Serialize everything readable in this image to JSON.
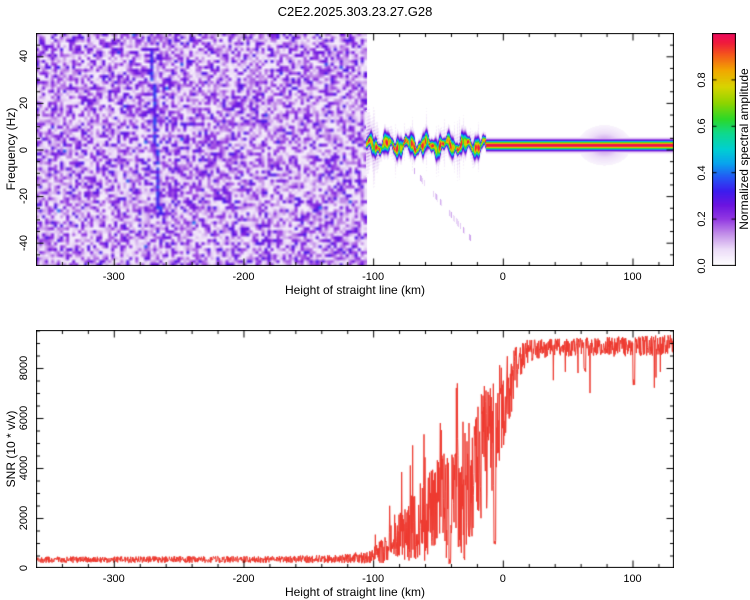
{
  "page": {
    "title": "C2E2.2025.303.23.27.G28",
    "background": "#ffffff",
    "frame_color": "#000000"
  },
  "chart_data": [
    {
      "id": "spectrogram",
      "type": "heatmap",
      "title": "C2E2.2025.303.23.27.G28",
      "xlabel": "Height of straight line (km)",
      "ylabel": "Frequency (Hz)",
      "xlim": [
        -360,
        132
      ],
      "ylim": [
        -50,
        50
      ],
      "xticks": [
        -300,
        -200,
        -100,
        0,
        100
      ],
      "xtick_labels": [
        "-300",
        "-200",
        "-100",
        "0",
        "100"
      ],
      "x_minor_step": 20,
      "yticks": [
        40,
        20,
        0,
        -20,
        -40
      ],
      "ytick_labels": [
        "40",
        "20",
        "0",
        "-20",
        "-40"
      ],
      "y_minor_step": 5,
      "grid": false,
      "colorbar": {
        "label": "Normalized spectral amplitude",
        "tick_values": [
          0.0,
          0.2,
          0.4,
          0.6,
          0.8
        ],
        "tick_labels": [
          "0.0",
          "0.2",
          "0.4",
          "0.6",
          "0.8"
        ],
        "range": [
          0,
          1
        ]
      },
      "colormap_stops": [
        [
          0.0,
          "#ffffff"
        ],
        [
          0.07,
          "#ecdcf8"
        ],
        [
          0.14,
          "#c08ae8"
        ],
        [
          0.2,
          "#9238e2"
        ],
        [
          0.26,
          "#6b14e0"
        ],
        [
          0.32,
          "#3c1cee"
        ],
        [
          0.38,
          "#2457f4"
        ],
        [
          0.44,
          "#09a4ee"
        ],
        [
          0.5,
          "#00cfd2"
        ],
        [
          0.57,
          "#0fd98c"
        ],
        [
          0.63,
          "#2cd829"
        ],
        [
          0.7,
          "#8ed400"
        ],
        [
          0.77,
          "#d8d400"
        ],
        [
          0.84,
          "#f2a800"
        ],
        [
          0.91,
          "#f4551c"
        ],
        [
          0.96,
          "#ef1a3c"
        ],
        [
          1.0,
          "#ee0a5e"
        ]
      ],
      "features": {
        "noise_region": {
          "x_start_km": -360,
          "x_end_km": -105,
          "base_amp": 0.03,
          "speckle_amp": 0.27
        },
        "diagonal_streak": {
          "from_km_hz": [
            -272,
            42
          ],
          "to_km_hz": [
            -266,
            -28
          ],
          "amp": 0.26
        },
        "signal_track": {
          "onset_km": -105,
          "end_km": 132,
          "center_hz": 2,
          "wavy_end_km": -13,
          "wavy_sigma_hz": 2.0,
          "line_sigma_hz": 1.35,
          "peak_amplitude": 1.0,
          "fringe_amp": 0.12
        },
        "halo_blob": {
          "center_km": 78,
          "sigma_km": 11,
          "amp": 0.13,
          "sigma_hz": 4.6
        },
        "sub_trail": {
          "from_km_hz": [
            -70,
            -8
          ],
          "to_km_hz": [
            -25,
            -38
          ],
          "amp": 0.1
        }
      }
    },
    {
      "id": "snr",
      "type": "line",
      "xlabel": "Height of straight line (km)",
      "ylabel": "SNR (10 * v/v)",
      "xlim": [
        -360,
        132
      ],
      "ylim": [
        0,
        9520
      ],
      "xticks": [
        -300,
        -200,
        -100,
        0,
        100
      ],
      "xtick_labels": [
        "-300",
        "-200",
        "-100",
        "0",
        "100"
      ],
      "x_minor_step": 20,
      "yticks": [
        0,
        2000,
        4000,
        6000,
        8000
      ],
      "ytick_labels": [
        "0",
        "2000",
        "4000",
        "6000",
        "8000"
      ],
      "y_minor_step": 500,
      "grid": false,
      "line_color": "#ee3a30",
      "envelope": [
        {
          "km": -360,
          "level": 330,
          "noise": 130
        },
        {
          "km": -200,
          "level": 340,
          "noise": 140
        },
        {
          "km": -130,
          "level": 360,
          "noise": 170
        },
        {
          "km": -104,
          "level": 430,
          "noise": 270
        },
        {
          "km": -96,
          "level": 580,
          "noise": 430
        },
        {
          "km": -88,
          "level": 870,
          "noise": 720
        },
        {
          "km": -80,
          "level": 1250,
          "noise": 1050
        },
        {
          "km": -72,
          "level": 1550,
          "noise": 1350
        },
        {
          "km": -64,
          "level": 1850,
          "noise": 1650
        },
        {
          "km": -56,
          "level": 2100,
          "noise": 1900
        },
        {
          "km": -48,
          "level": 2500,
          "noise": 2300
        },
        {
          "km": -40,
          "level": 2300,
          "noise": 2250
        },
        {
          "km": -33,
          "level": 3000,
          "noise": 2800
        },
        {
          "km": -26,
          "level": 3800,
          "noise": 2900
        },
        {
          "km": -19,
          "level": 4300,
          "noise": 2900
        },
        {
          "km": -13,
          "level": 4900,
          "noise": 2700
        },
        {
          "km": -8,
          "level": 5300,
          "noise": 2700
        },
        {
          "km": -4,
          "level": 6000,
          "noise": 2200
        },
        {
          "km": 0,
          "level": 6600,
          "noise": 1900
        },
        {
          "km": 4,
          "level": 7100,
          "noise": 1500
        },
        {
          "km": 8,
          "level": 7700,
          "noise": 1100
        },
        {
          "km": 13,
          "level": 8300,
          "noise": 750
        },
        {
          "km": 18,
          "level": 8600,
          "noise": 550
        },
        {
          "km": 24,
          "level": 8750,
          "noise": 430
        },
        {
          "km": 40,
          "level": 8820,
          "noise": 380
        },
        {
          "km": 80,
          "level": 8850,
          "noise": 420
        },
        {
          "km": 110,
          "level": 8880,
          "noise": 430
        },
        {
          "km": 132,
          "level": 8950,
          "noise": 400
        }
      ],
      "events": [
        {
          "km": -35.5,
          "value": 7500,
          "kind": "spike"
        },
        {
          "km": -48,
          "value": 5800,
          "kind": "spike"
        },
        {
          "km": -6.5,
          "value": 950,
          "kind": "dip"
        },
        {
          "km": -41,
          "value": 140,
          "kind": "dip"
        },
        {
          "km": -30,
          "value": 250,
          "kind": "dip"
        },
        {
          "km": 63,
          "value": 7800,
          "kind": "dip"
        },
        {
          "km": 101,
          "value": 7300,
          "kind": "dip"
        }
      ]
    }
  ]
}
